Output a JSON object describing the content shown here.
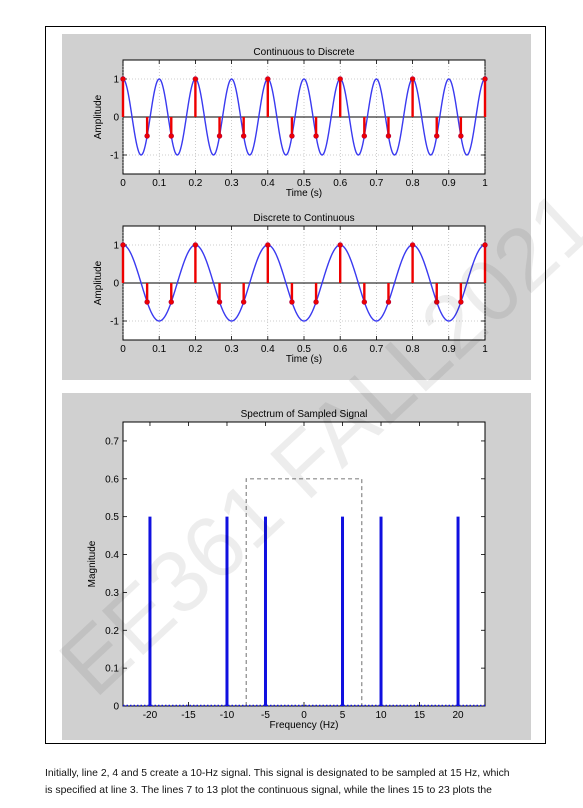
{
  "chart_data": [
    {
      "type": "line",
      "title": "Continuous to Discrete",
      "xlabel": "Time (s)",
      "ylabel": "Amplitude",
      "xlim": [
        0,
        1
      ],
      "ylim": [
        -1.5,
        1.5
      ],
      "xticks": [
        "0",
        "0.1",
        "0.2",
        "0.3",
        "0.4",
        "0.5",
        "0.6",
        "0.7",
        "0.8",
        "0.9",
        "1"
      ],
      "yticks": [
        "-1",
        "0",
        "1"
      ],
      "grid": true,
      "series": [
        {
          "kind": "continuous",
          "function": "cos(2*pi*10*t)",
          "color": "#3a3af0"
        },
        {
          "kind": "stem",
          "sample_rate_hz": 15,
          "function": "cos(2*pi*10*n/15)",
          "color": "#ee0000"
        }
      ]
    },
    {
      "type": "line",
      "title": "Discrete to Continuous",
      "xlabel": "Time (s)",
      "ylabel": "Amplitude",
      "xlim": [
        0,
        1
      ],
      "ylim": [
        -1.5,
        1.5
      ],
      "xticks": [
        "0",
        "0.1",
        "0.2",
        "0.3",
        "0.4",
        "0.5",
        "0.6",
        "0.7",
        "0.8",
        "0.9",
        "1"
      ],
      "yticks": [
        "-1",
        "0",
        "1"
      ],
      "grid": true,
      "series": [
        {
          "kind": "continuous",
          "function": "cos(2*pi*5*t)",
          "color": "#3a3af0"
        },
        {
          "kind": "stem",
          "sample_rate_hz": 15,
          "function": "cos(2*pi*10*n/15)",
          "color": "#ee0000"
        }
      ]
    },
    {
      "type": "bar",
      "title": "Spectrum of Sampled Signal",
      "xlabel": "Frequency (Hz)",
      "ylabel": "Magnitude",
      "xlim": [
        -23.5,
        23.5
      ],
      "ylim": [
        0,
        0.75
      ],
      "xticks": [
        "-20",
        "-15",
        "-10",
        "-5",
        "0",
        "5",
        "10",
        "15",
        "20"
      ],
      "yticks": [
        "0",
        "0.1",
        "0.2",
        "0.3",
        "0.4",
        "0.5",
        "0.6",
        "0.7"
      ],
      "grid": false,
      "lines": [
        {
          "x": -20,
          "y": 0.5
        },
        {
          "x": -10,
          "y": 0.5
        },
        {
          "x": -5,
          "y": 0.5
        },
        {
          "x": 5,
          "y": 0.5
        },
        {
          "x": 10,
          "y": 0.5
        },
        {
          "x": 20,
          "y": 0.5
        }
      ],
      "filter_box": {
        "x_range": [
          -7.5,
          7.5
        ],
        "height": 0.6
      },
      "bar_color": "#1010e0"
    }
  ],
  "caption": {
    "line1": "Initially, line 2, 4 and 5 create a 10-Hz signal. This signal is designated to be sampled at 15 Hz, which",
    "line2": "is specified at line 3. The lines 7 to 13 plot the continuous signal, while the lines 15 to 23 plots the"
  },
  "watermark": {
    "text": "EE361 FALL2021"
  }
}
